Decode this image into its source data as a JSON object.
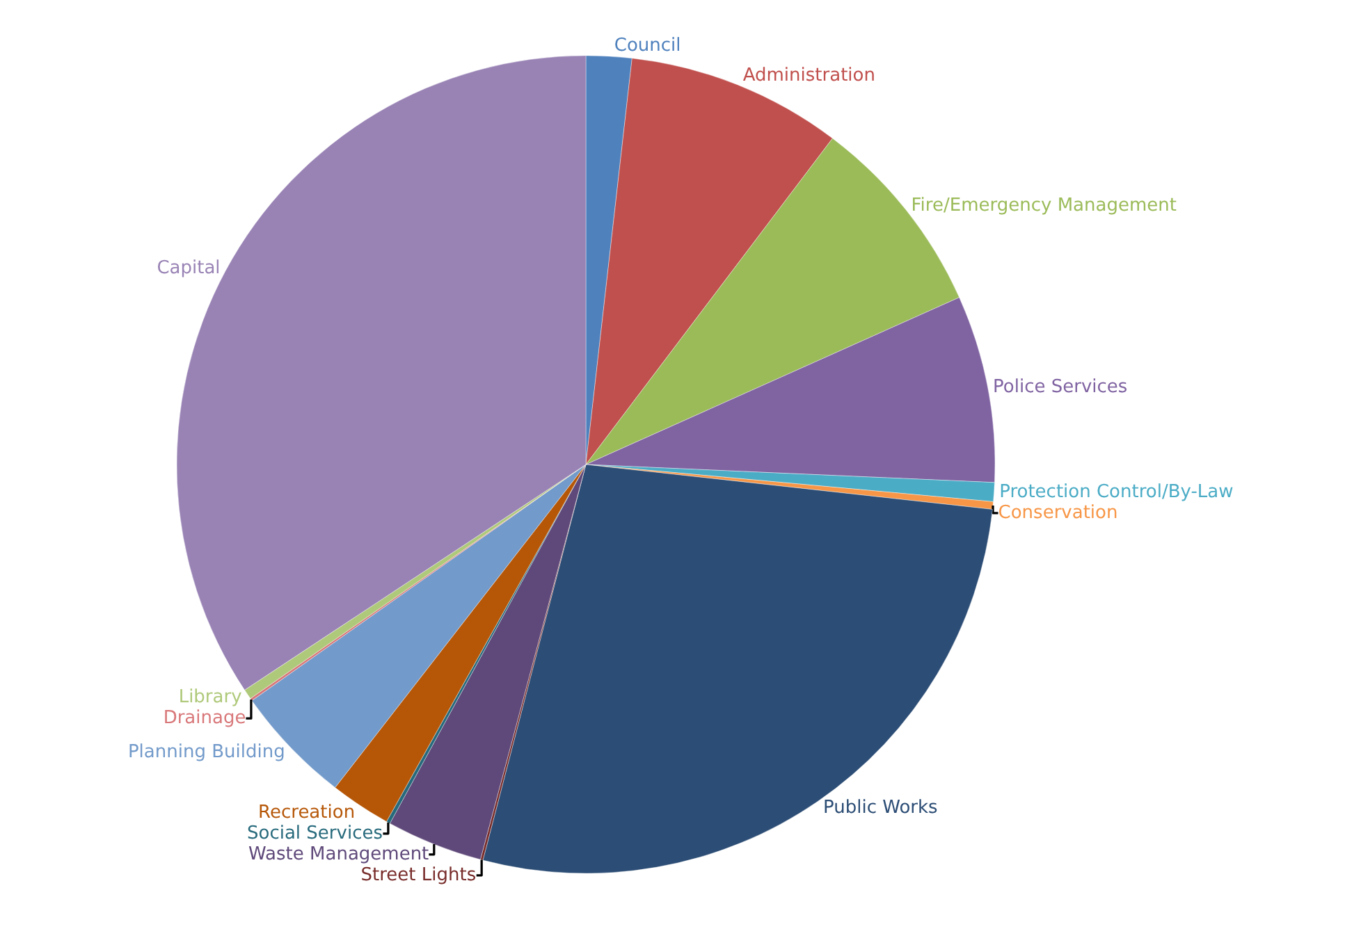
{
  "chart_data": {
    "type": "pie",
    "categories": [
      "Council",
      "Administration",
      "Fire/Emergency Management",
      "Police Services",
      "Protection Control/By-Law",
      "Conservation",
      "Public Works",
      "Street Lights",
      "Waste Management",
      "Social Services",
      "Recreation",
      "Planning Building",
      "Drainage",
      "Library",
      "Capital"
    ],
    "values": [
      1.8,
      8.5,
      8.0,
      7.4,
      0.75,
      0.3,
      27.3,
      0.1,
      3.8,
      0.15,
      2.4,
      4.7,
      0.1,
      0.4,
      34.3
    ],
    "colors": [
      "#4f81bd",
      "#c0504d",
      "#9bbb59",
      "#8064a2",
      "#4bacc6",
      "#f79646",
      "#2c4d75",
      "#772c2a",
      "#5f497a",
      "#276a7c",
      "#b65708",
      "#729aca",
      "#d9787a",
      "#afc97a",
      "#9983b5"
    ],
    "legend": false
  }
}
